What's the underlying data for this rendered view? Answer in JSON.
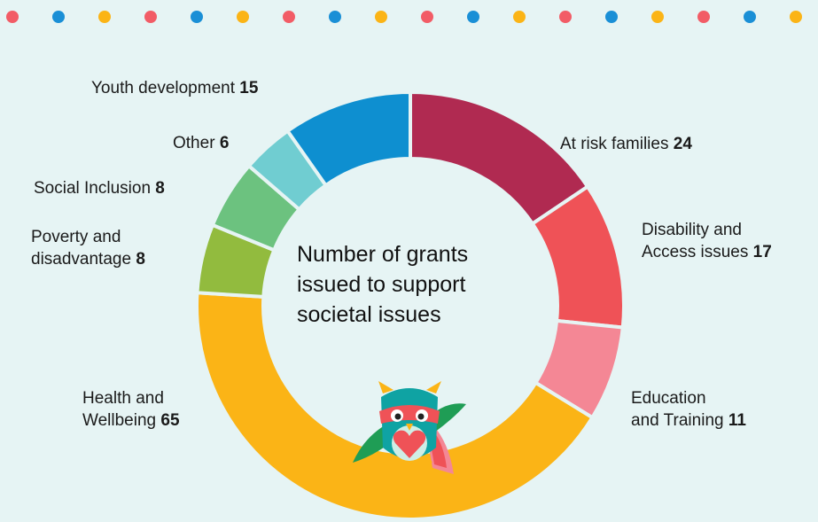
{
  "dot_colors": [
    "#f25c66",
    "#1a8fd6",
    "#fbb416"
  ],
  "chart_data": {
    "type": "pie",
    "subtype": "donut",
    "title": "Number of grants issued to support societal issues",
    "categories": [
      "At risk families",
      "Disability and Access issues",
      "Education and Training",
      "Health and Wellbeing",
      "Poverty and disadvantage",
      "Social Inclusion",
      "Other",
      "Youth development"
    ],
    "values": [
      24,
      17,
      11,
      65,
      8,
      8,
      6,
      15
    ],
    "colors": [
      "#b02a51",
      "#ef5257",
      "#f48795",
      "#fbb416",
      "#92bb3e",
      "#6cc27f",
      "#70cdd1",
      "#0e8fd0"
    ],
    "legend": "none",
    "labels": [
      {
        "line1": "At risk families ",
        "line2": "",
        "value": "24"
      },
      {
        "line1": "Disability and",
        "line2": "Access issues ",
        "value": "17"
      },
      {
        "line1": "Education",
        "line2": "and Training ",
        "value": "11"
      },
      {
        "line1": "Health and",
        "line2": "Wellbeing ",
        "value": "65"
      },
      {
        "line1": "Poverty and",
        "line2": "disadvantage ",
        "value": "8"
      },
      {
        "line1": "Social Inclusion ",
        "line2": "",
        "value": "8"
      },
      {
        "line1": "Other ",
        "line2": "",
        "value": "6"
      },
      {
        "line1": "Youth development ",
        "line2": "",
        "value": "15"
      }
    ]
  },
  "center_text": [
    "Number of grants",
    "issued to support",
    "societal issues"
  ]
}
